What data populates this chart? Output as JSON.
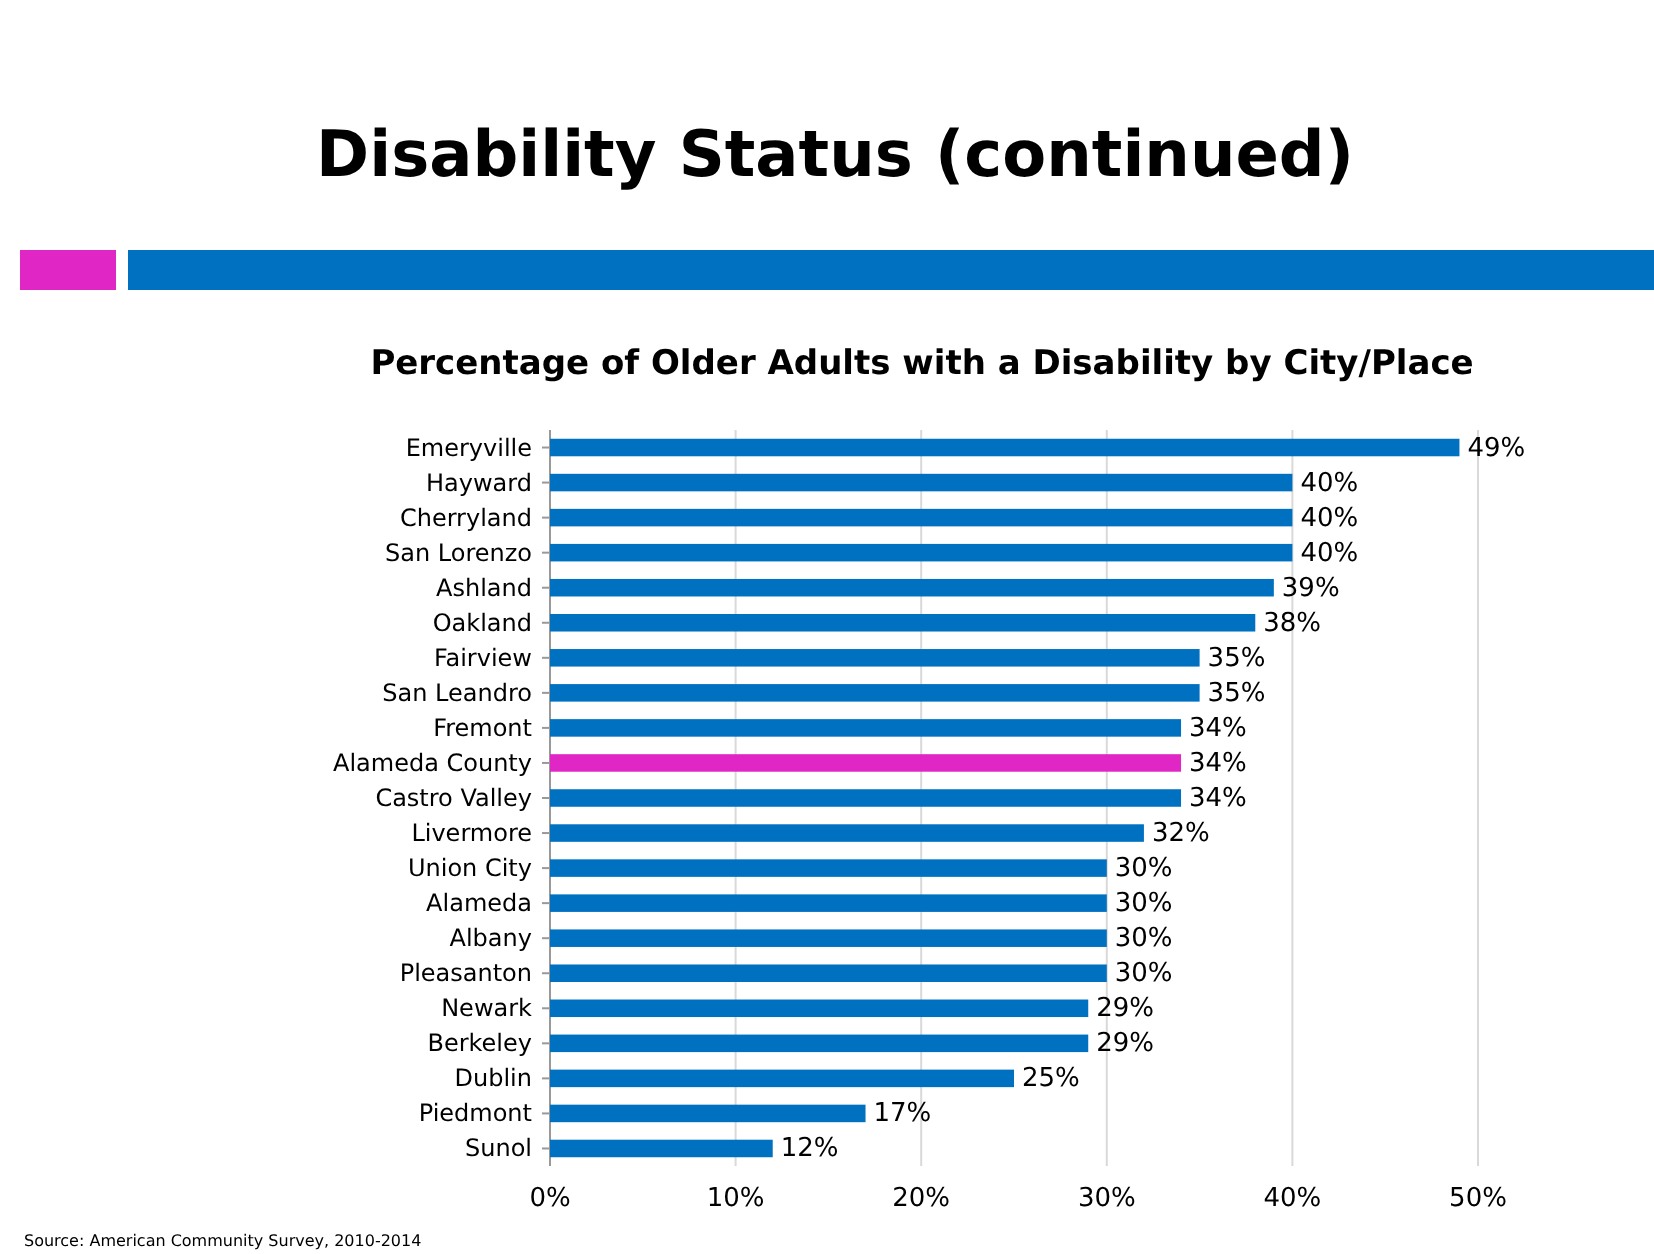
{
  "chart_data": {
    "type": "bar",
    "orientation": "horizontal",
    "title": "Disability Status (continued)",
    "subtitle": "Percentage of Older Adults with a Disability by City/Place",
    "categories": [
      "Emeryville",
      "Hayward",
      "Cherryland",
      "San Lorenzo",
      "Ashland",
      "Oakland",
      "Fairview",
      "San Leandro",
      "Fremont",
      "Alameda County",
      "Castro Valley",
      "Livermore",
      "Union City",
      "Alameda",
      "Albany",
      "Pleasanton",
      "Newark",
      "Berkeley",
      "Dublin",
      "Piedmont",
      "Sunol"
    ],
    "values": [
      49,
      40,
      40,
      40,
      39,
      38,
      35,
      35,
      34,
      34,
      34,
      32,
      30,
      30,
      30,
      30,
      29,
      29,
      25,
      17,
      12
    ],
    "colors": [
      "#0070c0",
      "#0070c0",
      "#0070c0",
      "#0070c0",
      "#0070c0",
      "#0070c0",
      "#0070c0",
      "#0070c0",
      "#0070c0",
      "#e026c4",
      "#0070c0",
      "#0070c0",
      "#0070c0",
      "#0070c0",
      "#0070c0",
      "#0070c0",
      "#0070c0",
      "#0070c0",
      "#0070c0",
      "#0070c0",
      "#0070c0"
    ],
    "value_labels": [
      "49%",
      "40%",
      "40%",
      "40%",
      "39%",
      "38%",
      "35%",
      "35%",
      "34%",
      "34%",
      "34%",
      "32%",
      "30%",
      "30%",
      "30%",
      "30%",
      "29%",
      "29%",
      "25%",
      "17%",
      "12%"
    ],
    "xlim": [
      0,
      50
    ],
    "xticks": [
      {
        "value": 0,
        "label": "0%"
      },
      {
        "value": 10,
        "label": "10%"
      },
      {
        "value": 20,
        "label": "20%"
      },
      {
        "value": 30,
        "label": "30%"
      },
      {
        "value": 40,
        "label": "40%"
      },
      {
        "value": 50,
        "label": "50%"
      }
    ],
    "grid": "x",
    "annotations": [
      "Source:  American Community Survey, 2010-2014"
    ]
  }
}
